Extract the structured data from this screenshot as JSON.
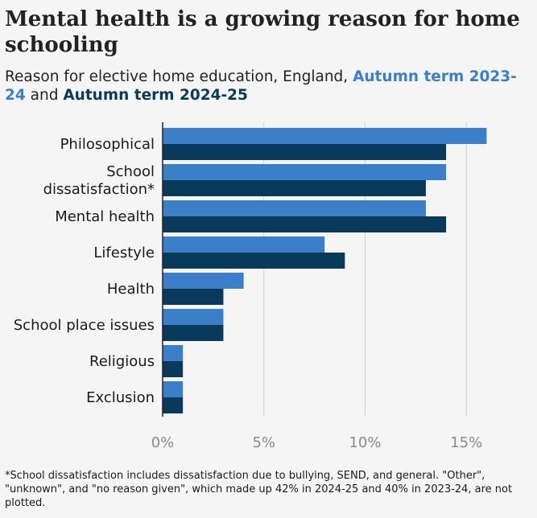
{
  "title": "Mental health is a growing reason for home schooling",
  "subtitle_prefix": "Reason for elective home education, England,",
  "series1_label": "Autumn term 2023-24",
  "subtitle_join": "and",
  "series2_label": "Autumn term 2024-25",
  "footnote": "*School dissatisfaction includes dissatisfaction due to bullying, SEND, and general. \"Other\", \"unknown\", and \"no reason given\", which made up 42% in 2024-25 and 40% in 2023-24, are not plotted.",
  "colors": {
    "series1": "#3a7fc8",
    "series2": "#093a5c",
    "grid": "#d0d0d0",
    "axis": "#222222"
  },
  "chart_data": {
    "type": "bar",
    "orientation": "horizontal",
    "categories": [
      "Philosophical",
      "School dissatisfaction*",
      "Mental health",
      "Lifestyle",
      "Health",
      "School place issues",
      "Religious",
      "Exclusion"
    ],
    "category_lines": [
      [
        "Philosophical"
      ],
      [
        "School",
        "dissatisfaction*"
      ],
      [
        "Mental health"
      ],
      [
        "Lifestyle"
      ],
      [
        "Health"
      ],
      [
        "School place issues"
      ],
      [
        "Religious"
      ],
      [
        "Exclusion"
      ]
    ],
    "series": [
      {
        "name": "Autumn term 2023-24",
        "values": [
          16,
          14,
          13,
          8,
          4,
          3,
          1,
          1
        ]
      },
      {
        "name": "Autumn term 2024-25",
        "values": [
          14,
          13,
          14,
          9,
          3,
          3,
          1,
          1
        ]
      }
    ],
    "xlim": [
      0,
      17
    ],
    "xticks": [
      0,
      5,
      10,
      15
    ],
    "xtick_labels": [
      "0%",
      "5%",
      "10%",
      "15%"
    ],
    "grid": true,
    "legend": "in subtitle"
  }
}
